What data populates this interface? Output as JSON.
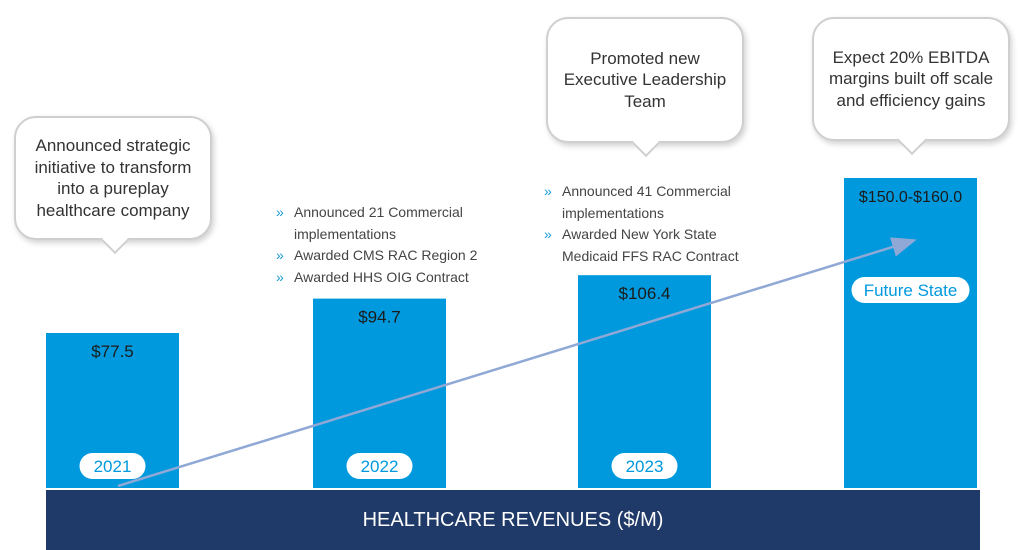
{
  "chart_data": {
    "type": "bar",
    "title": "HEALTHCARE REVENUES ($/M)",
    "categories": [
      "2021",
      "2022",
      "2023",
      "Future State"
    ],
    "values": [
      77.5,
      94.7,
      106.4,
      155.0
    ],
    "value_labels": [
      "$77.5",
      "$94.7",
      "$106.4",
      "$150.0-$160.0"
    ],
    "ylim": [
      0,
      160
    ],
    "bar_color": "#0099dd",
    "trend_arrow_color": "#8fa8d6",
    "annotations": {
      "2021": {
        "callout": "Announced strategic initiative to transform into a pureplay healthcare company",
        "bullets": []
      },
      "2022": {
        "callout": "",
        "bullets": [
          "Announced 21 Commercial implementations",
          "Awarded CMS RAC Region 2",
          "Awarded HHS OIG Contract"
        ]
      },
      "2023": {
        "callout": "Promoted new Executive Leadership Team",
        "bullets": [
          "Announced 41 Commercial implementations",
          "Awarded New York State Medicaid FFS RAC Contract"
        ]
      },
      "Future State": {
        "callout": "Expect 20% EBITDA margins built off scale and efficiency gains",
        "bullets": []
      }
    }
  }
}
